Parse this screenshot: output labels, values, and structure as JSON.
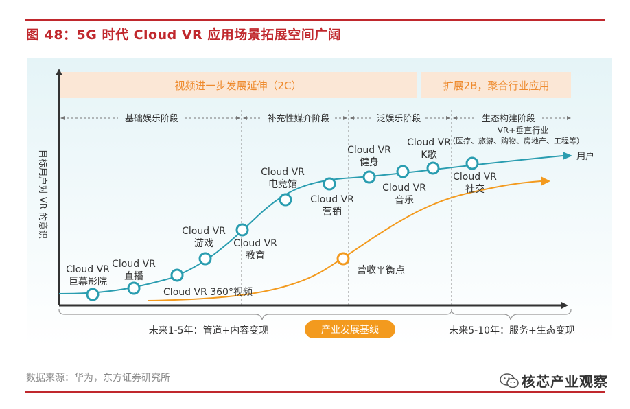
{
  "header": {
    "title": "图 48：5G 时代 Cloud VR 应用场景拓展空间广阔"
  },
  "diagram": {
    "y_axis_label": "目标用户对 VR 的意识",
    "banner_left": "视频进一步发展延伸（2C）",
    "banner_right": "扩展2B，聚合行业应用",
    "phases": [
      "基础娱乐阶段",
      "补充性媒介阶段",
      "泛娱乐阶段",
      "生态构建阶段"
    ],
    "ecosystem_detail_1": "VR+垂直行业",
    "ecosystem_detail_2": "（医疗、旅游、购物、房地产、工程等）",
    "user_curve_label": "用户",
    "milestones": [
      {
        "line1": "Cloud VR",
        "line2": "巨幕影院"
      },
      {
        "line1": "Cloud VR",
        "line2": "直播"
      },
      {
        "line1": "Cloud VR 360°视频",
        "line2": ""
      },
      {
        "line1": "Cloud VR",
        "line2": "游戏"
      },
      {
        "line1": "Cloud VR",
        "line2": "教育"
      },
      {
        "line1": "Cloud VR",
        "line2": "电竞馆"
      },
      {
        "line1": "Cloud VR",
        "line2": "营销"
      },
      {
        "line1": "Cloud VR",
        "line2": "健身"
      },
      {
        "line1": "Cloud VR",
        "line2": "音乐"
      },
      {
        "line1": "Cloud VR",
        "line2": "K歌"
      },
      {
        "line1": "Cloud VR",
        "line2": "社交"
      }
    ],
    "breakeven_label": "营收平衡点",
    "bottom_left": "未来1-5年：管道+内容变现",
    "bottom_pill": "产业发展基线",
    "bottom_right": "未来5-10年：服务+生态变现"
  },
  "footer": {
    "source": "数据来源：华为，东方证券研究所",
    "brand": "核芯产业观察"
  },
  "colors": {
    "accent_red": "#c0282d",
    "teal": "#2a9db0",
    "orange": "#f39a1e",
    "banner_bg": "#fbe7d6",
    "banner_text": "#ee8b2f"
  }
}
